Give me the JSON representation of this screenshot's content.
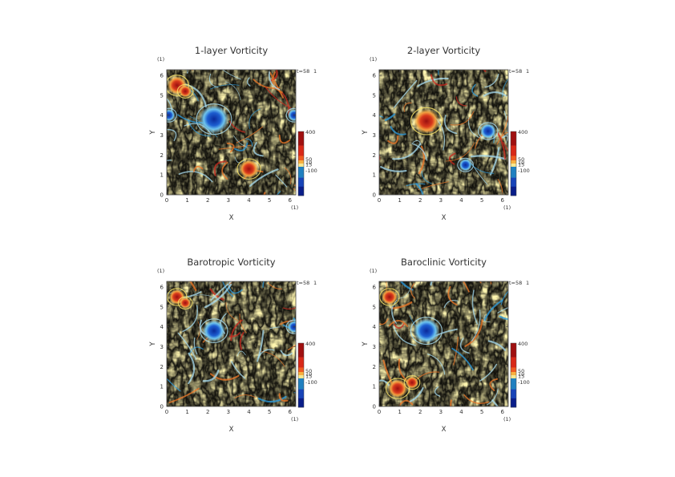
{
  "chart_data": [
    {
      "type": "heatmap",
      "title": "1-layer Vorticity",
      "xlabel": "X",
      "ylabel": "Y",
      "xunit": "(1)",
      "yunit": "(1)",
      "time_label": "t=58",
      "time_index": "1",
      "xlim": [
        0,
        6.283
      ],
      "ylim": [
        0,
        6.283
      ],
      "xticks": [
        "0",
        "1",
        "2",
        "3",
        "4",
        "5",
        "6"
      ],
      "yticks": [
        "0",
        "1",
        "2",
        "3",
        "4",
        "5",
        "6"
      ],
      "colorbar_labels": [
        "400",
        "50",
        "10",
        "15",
        "-100"
      ],
      "features": [
        {
          "kind": "vortex",
          "sign": "negative",
          "x": 2.3,
          "y": 3.8,
          "r": 0.45
        },
        {
          "kind": "vortex",
          "sign": "positive",
          "x": 0.5,
          "y": 5.5,
          "r": 0.3
        },
        {
          "kind": "vortex",
          "sign": "positive",
          "x": 0.9,
          "y": 5.2,
          "r": 0.2
        },
        {
          "kind": "vortex",
          "sign": "positive",
          "x": 4.0,
          "y": 1.3,
          "r": 0.3
        },
        {
          "kind": "vortex",
          "sign": "negative",
          "x": 6.2,
          "y": 4.0,
          "r": 0.2
        },
        {
          "kind": "vortex",
          "sign": "negative",
          "x": 0.1,
          "y": 4.0,
          "r": 0.2
        }
      ]
    },
    {
      "type": "heatmap",
      "title": "2-layer Vorticity",
      "xlabel": "X",
      "ylabel": "Y",
      "xunit": "(1)",
      "yunit": "(1)",
      "time_label": "t=58",
      "time_index": "1",
      "xlim": [
        0,
        6.283
      ],
      "ylim": [
        0,
        6.283
      ],
      "xticks": [
        "0",
        "1",
        "2",
        "3",
        "4",
        "5",
        "6"
      ],
      "yticks": [
        "0",
        "1",
        "2",
        "3",
        "4",
        "5",
        "6"
      ],
      "colorbar_labels": [
        "400",
        "50",
        "10",
        "15",
        "-100"
      ],
      "features": [
        {
          "kind": "vortex",
          "sign": "positive",
          "x": 2.3,
          "y": 3.7,
          "r": 0.4
        },
        {
          "kind": "vortex",
          "sign": "negative",
          "x": 5.3,
          "y": 3.2,
          "r": 0.25
        },
        {
          "kind": "vortex",
          "sign": "negative",
          "x": 4.2,
          "y": 1.5,
          "r": 0.2
        }
      ]
    },
    {
      "type": "heatmap",
      "title": "Barotropic Vorticity",
      "xlabel": "X",
      "ylabel": "Y",
      "xunit": "(1)",
      "yunit": "(1)",
      "time_label": "t=58",
      "time_index": "1",
      "xlim": [
        0,
        6.283
      ],
      "ylim": [
        0,
        6.283
      ],
      "xticks": [
        "0",
        "1",
        "2",
        "3",
        "4",
        "5",
        "6"
      ],
      "yticks": [
        "0",
        "1",
        "2",
        "3",
        "4",
        "5",
        "6"
      ],
      "colorbar_labels": [
        "400",
        "50",
        "10",
        "15",
        "-100"
      ],
      "features": [
        {
          "kind": "vortex",
          "sign": "negative",
          "x": 2.3,
          "y": 3.8,
          "r": 0.35
        },
        {
          "kind": "vortex",
          "sign": "positive",
          "x": 0.5,
          "y": 5.5,
          "r": 0.25
        },
        {
          "kind": "vortex",
          "sign": "positive",
          "x": 0.9,
          "y": 5.2,
          "r": 0.18
        },
        {
          "kind": "vortex",
          "sign": "negative",
          "x": 6.2,
          "y": 4.0,
          "r": 0.2
        }
      ]
    },
    {
      "type": "heatmap",
      "title": "Baroclinic Vorticity",
      "xlabel": "X",
      "ylabel": "Y",
      "xunit": "(1)",
      "yunit": "(1)",
      "time_label": "t=58",
      "time_index": "1",
      "xlim": [
        0,
        6.283
      ],
      "ylim": [
        0,
        6.283
      ],
      "xticks": [
        "0",
        "1",
        "2",
        "3",
        "4",
        "5",
        "6"
      ],
      "yticks": [
        "0",
        "1",
        "2",
        "3",
        "4",
        "5",
        "6"
      ],
      "colorbar_labels": [
        "400",
        "50",
        "10",
        "15",
        "-100"
      ],
      "features": [
        {
          "kind": "vortex",
          "sign": "negative",
          "x": 2.3,
          "y": 3.8,
          "r": 0.4
        },
        {
          "kind": "vortex",
          "sign": "positive",
          "x": 0.5,
          "y": 5.5,
          "r": 0.25
        },
        {
          "kind": "vortex",
          "sign": "positive",
          "x": 0.9,
          "y": 0.9,
          "r": 0.3
        },
        {
          "kind": "vortex",
          "sign": "positive",
          "x": 1.6,
          "y": 1.2,
          "r": 0.2
        }
      ]
    }
  ],
  "colors": {
    "strong_positive": "#c8281e",
    "positive": "#f07a28",
    "weak_positive": "#fde66a",
    "background": "#fff6b0",
    "weak_negative": "#a8dcf0",
    "negative": "#2e9ee0",
    "strong_negative": "#1a3fbf",
    "colorbar": [
      "#a01010",
      "#d82818",
      "#f05a20",
      "#f8b040",
      "#f8e890",
      "#2080c0",
      "#1844b8",
      "#0a1e8a"
    ]
  }
}
